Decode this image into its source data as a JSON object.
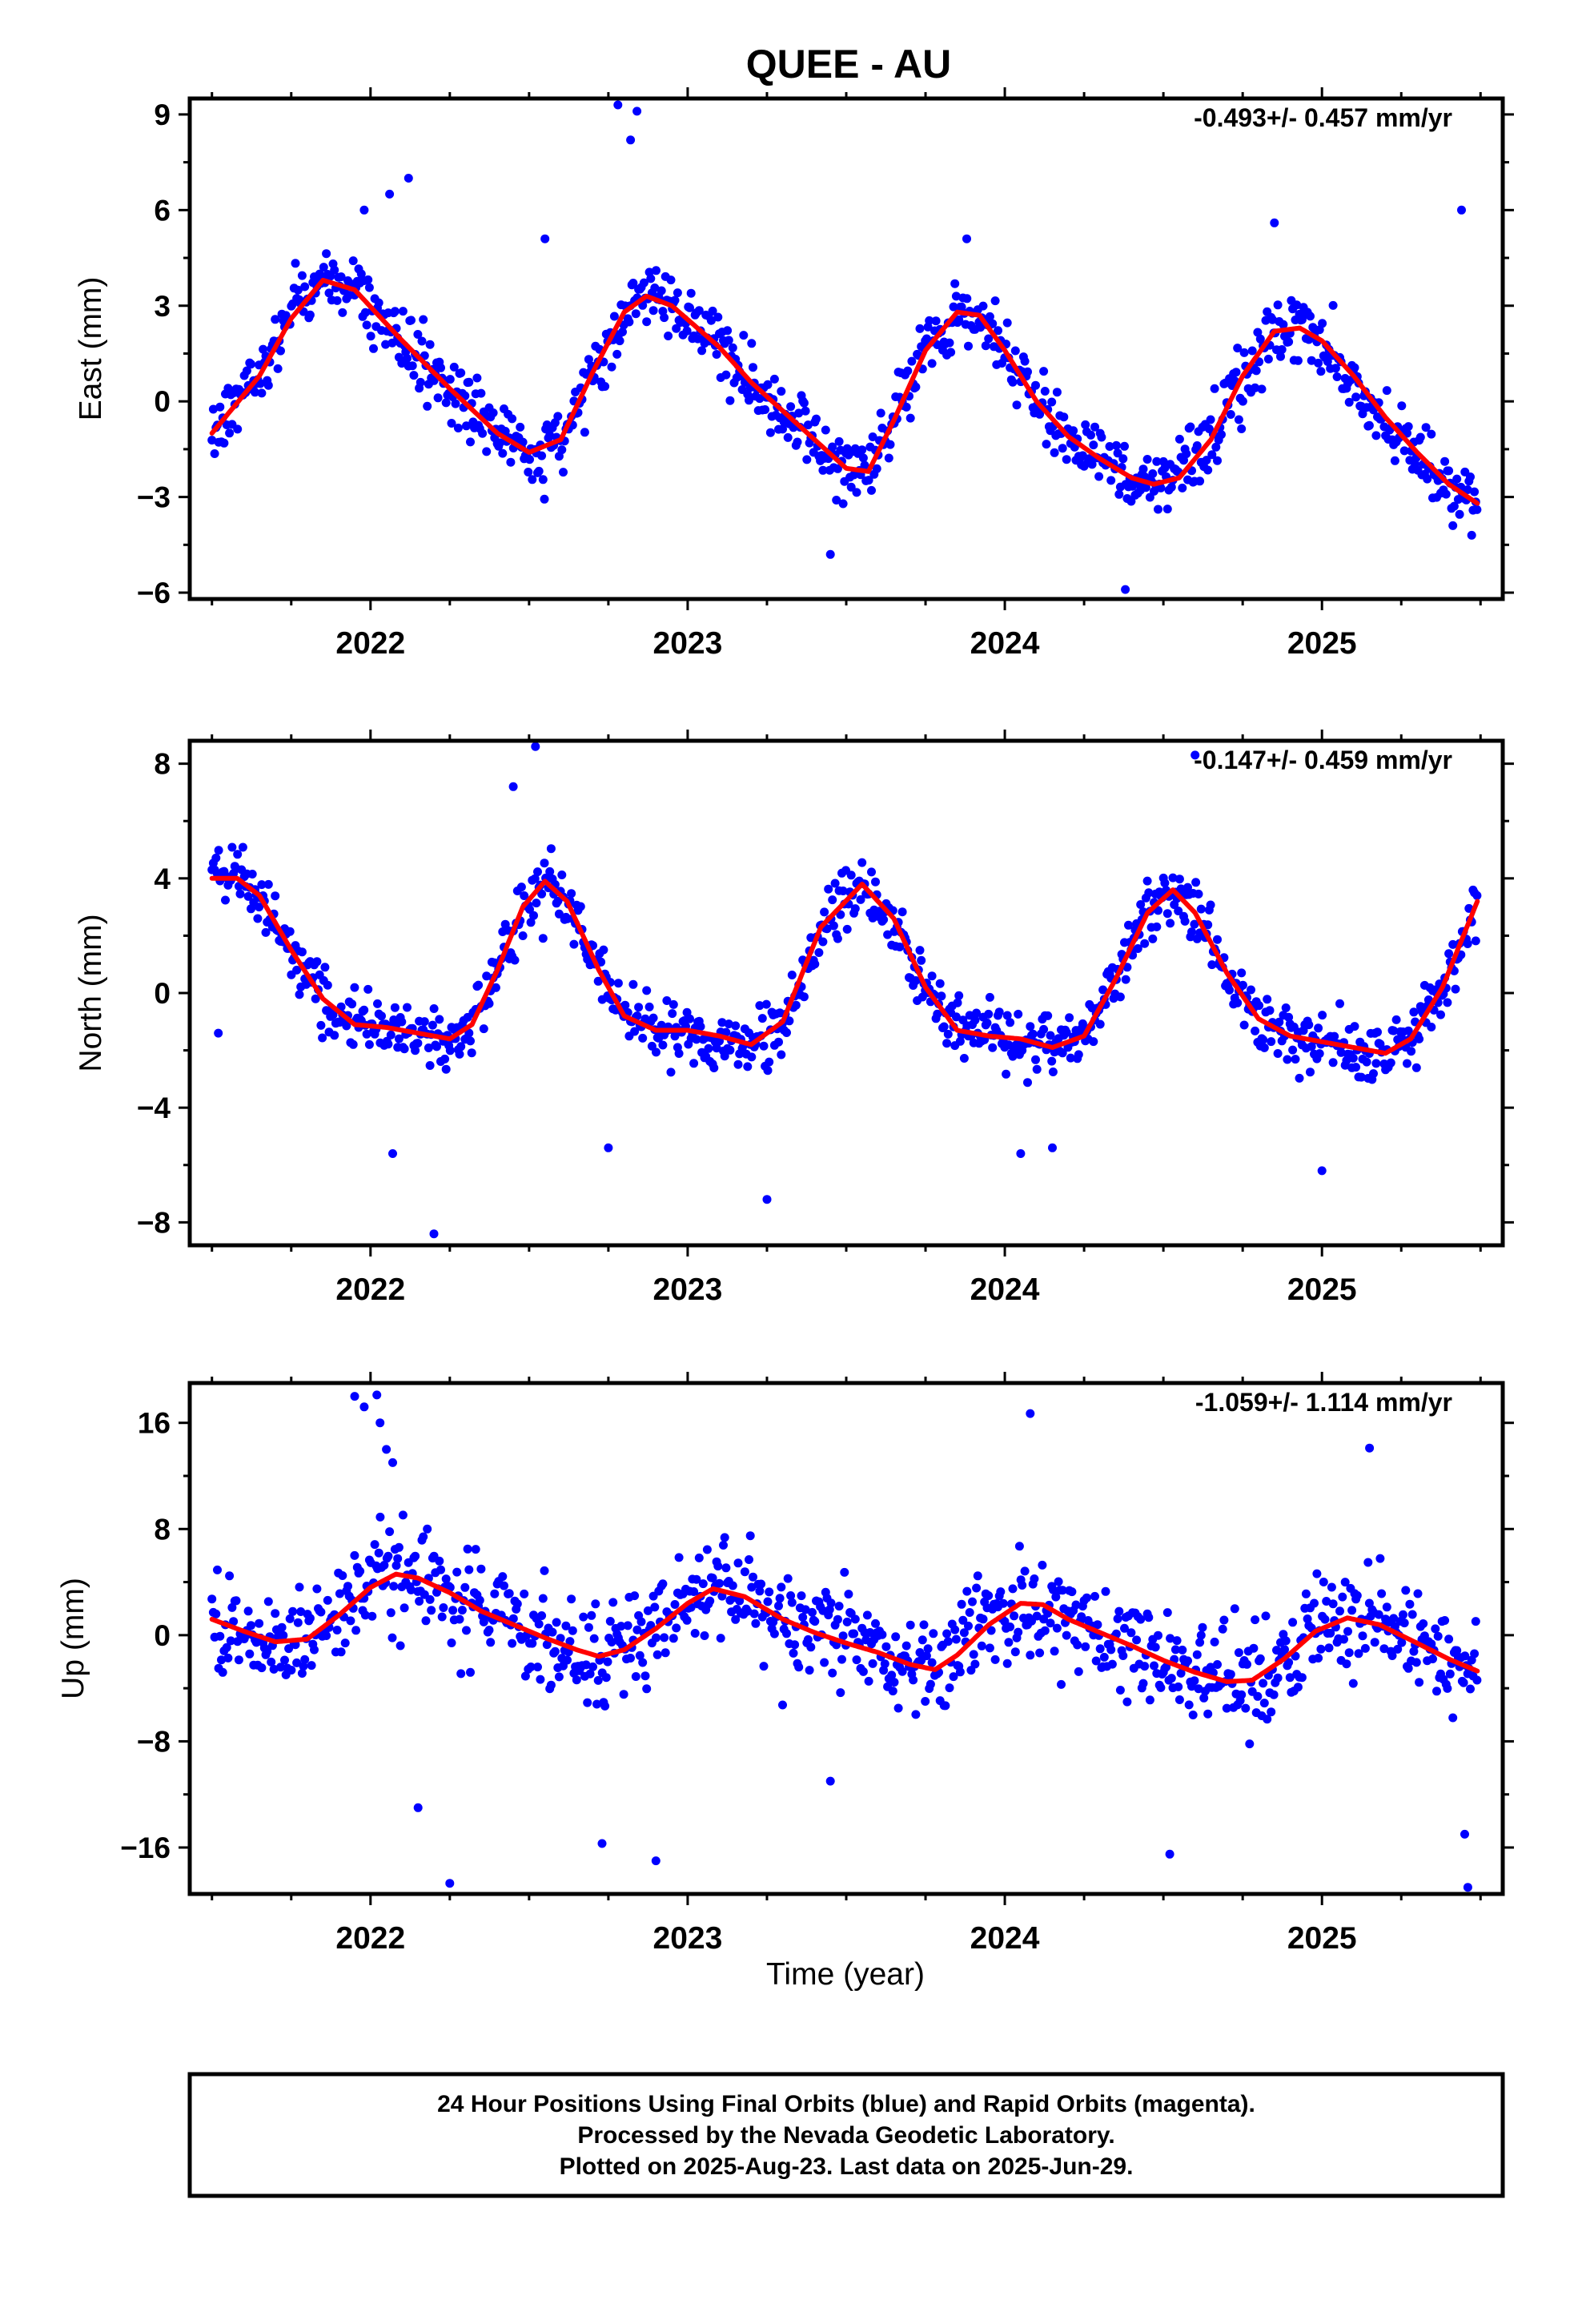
{
  "title": "QUEE - AU",
  "x_axis_label": "Time (year)",
  "caption": [
    "24 Hour Positions Using Final Orbits (blue) and Rapid Orbits (magenta).",
    "Processed by the Nevada Geodetic Laboratory.",
    "Plotted on 2025-Aug-23. Last data on 2025-Jun-29."
  ],
  "colors": {
    "points": "#0000ff",
    "fit": "#ff0000",
    "frame": "#000000"
  },
  "chart_data": [
    {
      "type": "scatter",
      "component": "east",
      "ylabel": "East (mm)",
      "rate": "-0.493+/- 0.457 mm/yr",
      "xlim": [
        2021.43,
        2025.57
      ],
      "ylim": [
        -6.2,
        9.5
      ],
      "xticks": [
        2022,
        2023,
        2024,
        2025
      ],
      "yticks": [
        9,
        6,
        3,
        0,
        -3,
        -6
      ],
      "grid": false,
      "data_start": 2021.5,
      "data_end": 2025.49,
      "scatter_sd": 0.9,
      "outliers": [
        [
          2021.98,
          6.0
        ],
        [
          2022.06,
          6.5
        ],
        [
          2022.12,
          7.0
        ],
        [
          2022.78,
          9.3
        ],
        [
          2022.82,
          8.2
        ],
        [
          2022.84,
          9.1
        ],
        [
          2023.45,
          -4.8
        ],
        [
          2024.38,
          -5.9
        ],
        [
          2024.85,
          5.6
        ],
        [
          2025.44,
          6.0
        ],
        [
          2022.55,
          5.1
        ],
        [
          2023.88,
          5.1
        ]
      ],
      "fit": [
        [
          2021.5,
          -1.0
        ],
        [
          2021.65,
          0.8
        ],
        [
          2021.75,
          2.6
        ],
        [
          2021.85,
          3.8
        ],
        [
          2021.95,
          3.5
        ],
        [
          2022.1,
          1.9
        ],
        [
          2022.25,
          0.4
        ],
        [
          2022.4,
          -1.0
        ],
        [
          2022.5,
          -1.6
        ],
        [
          2022.6,
          -1.2
        ],
        [
          2022.7,
          0.9
        ],
        [
          2022.8,
          2.8
        ],
        [
          2022.87,
          3.3
        ],
        [
          2022.95,
          3.0
        ],
        [
          2023.1,
          1.7
        ],
        [
          2023.2,
          0.6
        ],
        [
          2023.3,
          -0.3
        ],
        [
          2023.4,
          -1.2
        ],
        [
          2023.5,
          -2.1
        ],
        [
          2023.57,
          -2.2
        ],
        [
          2023.65,
          -0.6
        ],
        [
          2023.75,
          1.6
        ],
        [
          2023.85,
          2.8
        ],
        [
          2023.92,
          2.7
        ],
        [
          2024.0,
          1.6
        ],
        [
          2024.1,
          0.0
        ],
        [
          2024.2,
          -1.1
        ],
        [
          2024.3,
          -1.8
        ],
        [
          2024.4,
          -2.4
        ],
        [
          2024.47,
          -2.6
        ],
        [
          2024.55,
          -2.4
        ],
        [
          2024.65,
          -1.2
        ],
        [
          2024.75,
          0.8
        ],
        [
          2024.85,
          2.2
        ],
        [
          2024.93,
          2.3
        ],
        [
          2025.0,
          1.9
        ],
        [
          2025.1,
          0.8
        ],
        [
          2025.2,
          -0.5
        ],
        [
          2025.3,
          -1.6
        ],
        [
          2025.4,
          -2.6
        ],
        [
          2025.49,
          -3.2
        ]
      ]
    },
    {
      "type": "scatter",
      "component": "north",
      "ylabel": "North (mm)",
      "rate": "-0.147+/- 0.459 mm/yr",
      "xlim": [
        2021.43,
        2025.57
      ],
      "ylim": [
        -8.8,
        8.8
      ],
      "xticks": [
        2022,
        2023,
        2024,
        2025
      ],
      "yticks": [
        8,
        4,
        0,
        -4,
        -8
      ],
      "grid": false,
      "data_start": 2021.5,
      "data_end": 2025.49,
      "scatter_sd": 0.95,
      "outliers": [
        [
          2022.07,
          -5.6
        ],
        [
          2022.2,
          -8.4
        ],
        [
          2022.45,
          7.2
        ],
        [
          2022.52,
          8.6
        ],
        [
          2022.75,
          -5.4
        ],
        [
          2023.25,
          -7.2
        ],
        [
          2024.05,
          -5.6
        ],
        [
          2024.15,
          -5.4
        ],
        [
          2025.0,
          -6.2
        ],
        [
          2024.6,
          8.3
        ],
        [
          2021.52,
          -1.4
        ]
      ],
      "fit": [
        [
          2021.5,
          4.0
        ],
        [
          2021.58,
          4.0
        ],
        [
          2021.65,
          3.4
        ],
        [
          2021.75,
          1.5
        ],
        [
          2021.85,
          -0.2
        ],
        [
          2021.95,
          -1.1
        ],
        [
          2022.05,
          -1.2
        ],
        [
          2022.15,
          -1.4
        ],
        [
          2022.25,
          -1.6
        ],
        [
          2022.32,
          -1.1
        ],
        [
          2022.4,
          0.8
        ],
        [
          2022.48,
          3.0
        ],
        [
          2022.55,
          3.9
        ],
        [
          2022.62,
          3.2
        ],
        [
          2022.72,
          0.8
        ],
        [
          2022.8,
          -0.8
        ],
        [
          2022.9,
          -1.3
        ],
        [
          2023.0,
          -1.3
        ],
        [
          2023.1,
          -1.5
        ],
        [
          2023.2,
          -1.8
        ],
        [
          2023.3,
          -1.0
        ],
        [
          2023.42,
          2.3
        ],
        [
          2023.55,
          3.8
        ],
        [
          2023.65,
          2.6
        ],
        [
          2023.75,
          0.2
        ],
        [
          2023.85,
          -1.3
        ],
        [
          2023.95,
          -1.5
        ],
        [
          2024.05,
          -1.6
        ],
        [
          2024.15,
          -1.9
        ],
        [
          2024.25,
          -1.5
        ],
        [
          2024.35,
          0.5
        ],
        [
          2024.45,
          2.8
        ],
        [
          2024.53,
          3.6
        ],
        [
          2024.6,
          2.8
        ],
        [
          2024.7,
          0.7
        ],
        [
          2024.8,
          -0.9
        ],
        [
          2024.9,
          -1.5
        ],
        [
          2025.0,
          -1.7
        ],
        [
          2025.1,
          -1.9
        ],
        [
          2025.2,
          -2.1
        ],
        [
          2025.28,
          -1.6
        ],
        [
          2025.38,
          0.2
        ],
        [
          2025.49,
          3.2
        ]
      ]
    },
    {
      "type": "scatter",
      "component": "up",
      "ylabel": "Up (mm)",
      "rate": "-1.059+/- 1.114 mm/yr",
      "xlim": [
        2021.43,
        2025.57
      ],
      "ylim": [
        -19.5,
        19
      ],
      "xticks": [
        2022,
        2023,
        2024,
        2025
      ],
      "yticks": [
        16,
        8,
        0,
        -8,
        -16
      ],
      "grid": false,
      "data_start": 2021.5,
      "data_end": 2025.49,
      "scatter_sd": 3.4,
      "outliers": [
        [
          2021.95,
          18.0
        ],
        [
          2021.98,
          17.2
        ],
        [
          2022.02,
          18.1
        ],
        [
          2022.03,
          16.0
        ],
        [
          2022.05,
          14.0
        ],
        [
          2022.07,
          13.0
        ],
        [
          2022.25,
          -18.7
        ],
        [
          2022.15,
          -13.0
        ],
        [
          2022.73,
          -15.7
        ],
        [
          2022.9,
          -17.0
        ],
        [
          2023.45,
          -11.0
        ],
        [
          2024.08,
          16.7
        ],
        [
          2024.52,
          -16.5
        ],
        [
          2025.15,
          14.1
        ],
        [
          2025.46,
          -19.0
        ],
        [
          2025.45,
          -15.0
        ]
      ],
      "fit": [
        [
          2021.5,
          1.2
        ],
        [
          2021.6,
          0.3
        ],
        [
          2021.7,
          -0.5
        ],
        [
          2021.8,
          -0.3
        ],
        [
          2021.9,
          1.5
        ],
        [
          2022.0,
          3.6
        ],
        [
          2022.08,
          4.6
        ],
        [
          2022.15,
          4.3
        ],
        [
          2022.25,
          3.2
        ],
        [
          2022.35,
          1.8
        ],
        [
          2022.45,
          0.8
        ],
        [
          2022.55,
          -0.2
        ],
        [
          2022.65,
          -1.1
        ],
        [
          2022.72,
          -1.6
        ],
        [
          2022.8,
          -1.1
        ],
        [
          2022.9,
          0.5
        ],
        [
          2023.0,
          2.4
        ],
        [
          2023.08,
          3.5
        ],
        [
          2023.18,
          2.9
        ],
        [
          2023.3,
          1.2
        ],
        [
          2023.4,
          0.2
        ],
        [
          2023.5,
          -0.6
        ],
        [
          2023.6,
          -1.3
        ],
        [
          2023.7,
          -2.2
        ],
        [
          2023.78,
          -2.6
        ],
        [
          2023.85,
          -1.5
        ],
        [
          2023.95,
          0.8
        ],
        [
          2024.05,
          2.4
        ],
        [
          2024.12,
          2.3
        ],
        [
          2024.2,
          1.2
        ],
        [
          2024.3,
          0.2
        ],
        [
          2024.4,
          -0.8
        ],
        [
          2024.5,
          -1.9
        ],
        [
          2024.6,
          -2.8
        ],
        [
          2024.7,
          -3.5
        ],
        [
          2024.78,
          -3.4
        ],
        [
          2024.88,
          -1.8
        ],
        [
          2024.98,
          0.3
        ],
        [
          2025.08,
          1.3
        ],
        [
          2025.18,
          0.8
        ],
        [
          2025.3,
          -0.6
        ],
        [
          2025.4,
          -1.8
        ],
        [
          2025.49,
          -2.7
        ]
      ]
    }
  ]
}
